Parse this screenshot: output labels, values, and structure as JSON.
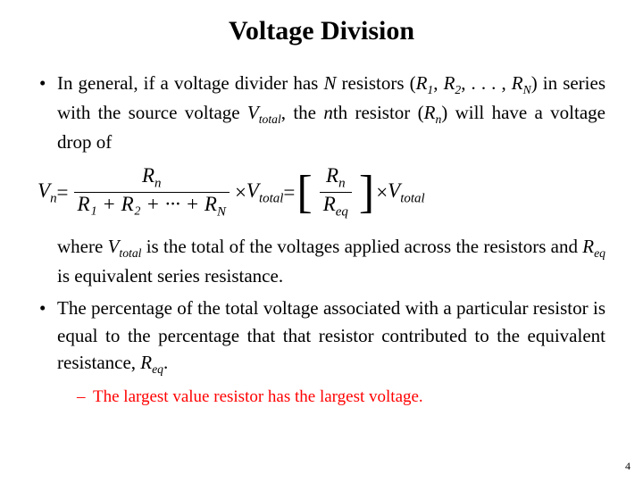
{
  "title": "Voltage Division",
  "bullet1": {
    "t1": "In general, if a voltage divider has ",
    "N": "N",
    "t2": " resistors (",
    "R1": "R",
    "R1s": "1",
    "t3": ", ",
    "R2": "R",
    "R2s": "2",
    "t4": ", . . . , ",
    "RN": "R",
    "RNs": "N",
    "t5": ") in series with the source voltage ",
    "Vt": "V",
    "Vts": "total",
    "t6": ", the ",
    "n": "n",
    "t7": "th resistor (",
    "Rn": "R",
    "Rns": "n",
    "t8": ") will have a voltage drop of"
  },
  "equation": {
    "Vn": "V",
    "Vns": "n",
    "eq": " = ",
    "num1_R": "R",
    "num1_s": "n",
    "den1": "R₁ + R₂ + ··· + R",
    "den1_lastsub": "N",
    "times": " × ",
    "Vt": "V",
    "Vts": "total",
    "eq2": " = ",
    "num2_R": "R",
    "num2_s": "n",
    "den2_R": "R",
    "den2_s": "eq",
    "Vt2": "V",
    "Vt2s": "total"
  },
  "bullet1b": {
    "t1": "where ",
    "Vt": "V",
    "Vts": "total",
    "t2": " is the total of the voltages applied across the resistors and ",
    "Req": "R",
    "Reqs": "eq",
    "t3": " is equivalent series resistance."
  },
  "bullet2": {
    "t1": "The percentage of the total voltage associated with a particular resistor is equal to the percentage that that resistor contributed to the equivalent resistance, ",
    "Req": "R",
    "Reqs": "eq",
    "t2": "."
  },
  "sub": "The largest value resistor has the largest voltage.",
  "pagenum": "4",
  "colors": {
    "accent": "#ff0000",
    "text": "#000000",
    "bg": "#ffffff"
  },
  "fontsize": {
    "title": 30,
    "body": 21,
    "eq": 23,
    "sub": 19,
    "pagenum": 12
  }
}
